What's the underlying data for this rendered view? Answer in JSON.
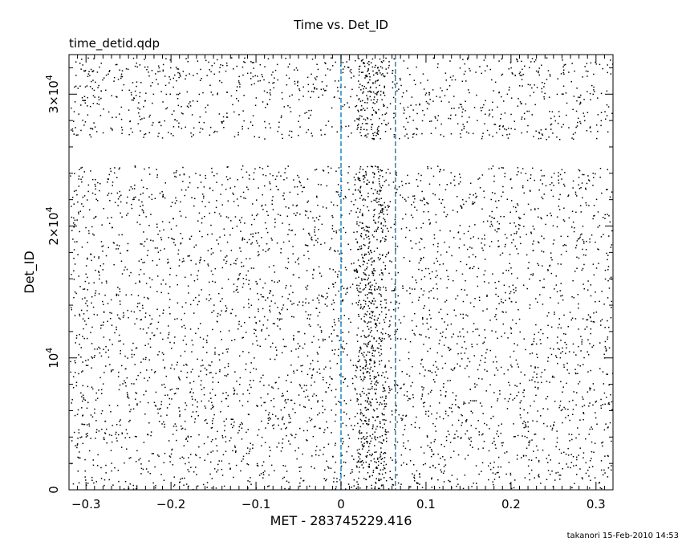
{
  "chart_data": {
    "type": "scatter",
    "title": "Time vs. Det_ID",
    "subtitle": "time_detid.qdp",
    "xlabel": "MET - 283745229.416",
    "ylabel": "Det_ID",
    "xlim": [
      -0.32,
      0.32
    ],
    "ylim": [
      0,
      33000
    ],
    "x_ticks": [
      -0.3,
      -0.2,
      -0.1,
      0,
      0.1,
      0.2,
      0.3
    ],
    "x_tick_labels": [
      "−0.3",
      "−0.2",
      "−0.1",
      "0",
      "0.1",
      "0.2",
      "0.3"
    ],
    "y_ticks": [
      0,
      10000,
      20000,
      30000
    ],
    "y_tick_labels": [
      {
        "base": "0",
        "exp": ""
      },
      {
        "base": "10",
        "exp": "4"
      },
      {
        "base": "2×10",
        "exp": "4"
      },
      {
        "base": "3×10",
        "exp": "4"
      }
    ],
    "y_gap": [
      24600,
      26600
    ],
    "vlines": [
      0.0,
      0.064
    ],
    "vline_color": "#1a88c9",
    "point_color": "#000000",
    "grid": false
  },
  "footer": "takanori 15-Feb-2010 14:53"
}
